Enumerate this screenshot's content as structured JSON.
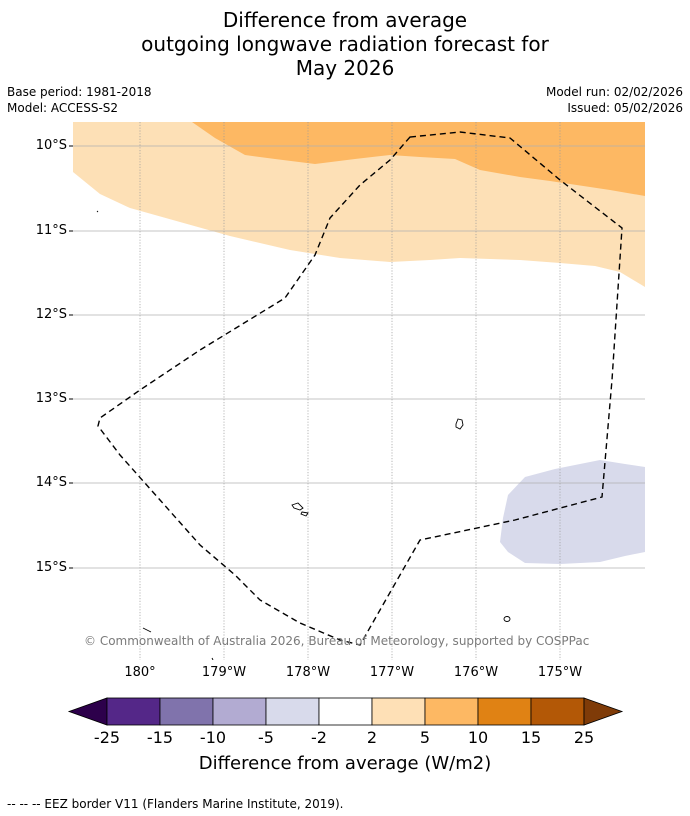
{
  "title": {
    "line1": "Difference from average",
    "line2": "outgoing longwave radiation forecast for",
    "line3": "May 2026"
  },
  "meta": {
    "base_period": "Base period: 1981-2018",
    "model": "Model: ACCESS-S2",
    "model_run": "Model run: 02/02/2026",
    "issued": "Issued: 05/02/2026"
  },
  "map": {
    "lat_labels": [
      "10°S",
      "11°S",
      "12°S",
      "13°S",
      "14°S",
      "15°S"
    ],
    "lon_labels": [
      "180°",
      "179°W",
      "178°W",
      "177°W",
      "176°W",
      "175°W"
    ],
    "copyright": "© Commonwealth of Australia 2026, Bureau of Meteorology, supported by COSPPac",
    "region_colors": {
      "light_orange": "#fde0b6",
      "mid_orange": "#fdb863",
      "light_purple": "#d8daeb"
    }
  },
  "colorbar": {
    "ticks": [
      "-25",
      "-15",
      "-10",
      "-5",
      "-2",
      "2",
      "5",
      "10",
      "15",
      "25"
    ],
    "colors": [
      "#2d004b",
      "#542788",
      "#8073ac",
      "#b2abd2",
      "#d8daeb",
      "#ffffff",
      "#fee0b6",
      "#fdb863",
      "#e08214",
      "#b35806",
      "#7f3b08"
    ],
    "label": "Difference from average (W/m2)"
  },
  "footer": {
    "legend_text": "--  --  -- EEZ border V11 (Flanders Marine Institute, 2019)."
  }
}
